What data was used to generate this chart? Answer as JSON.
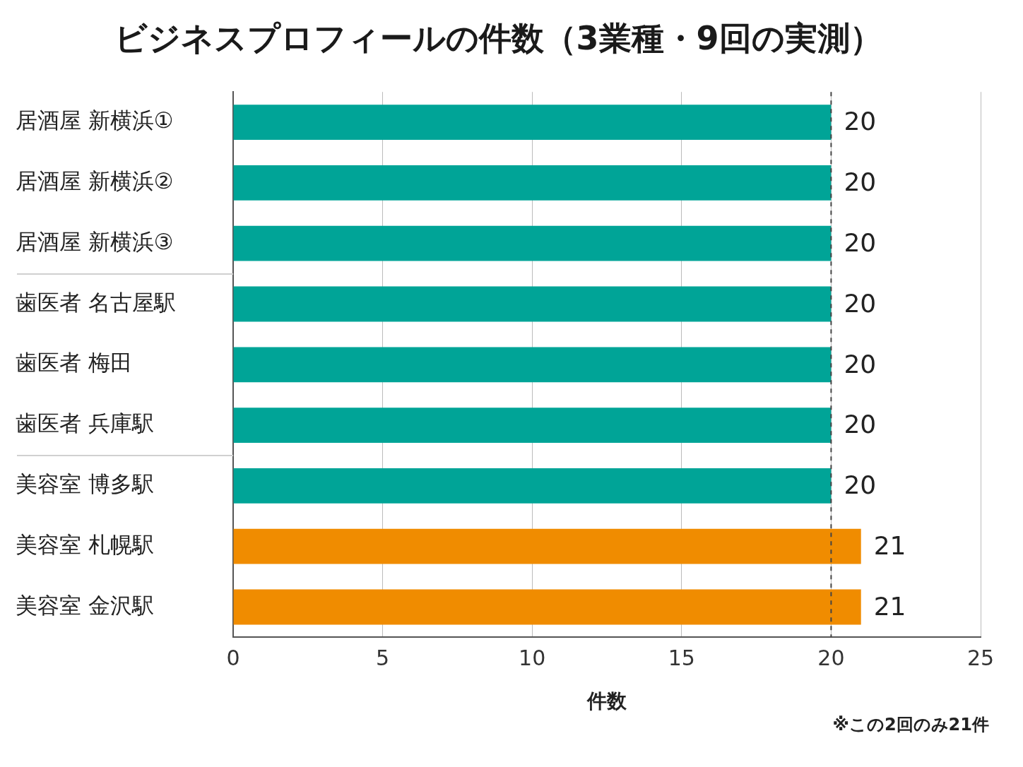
{
  "chart_data": {
    "type": "bar",
    "orientation": "horizontal",
    "title": "ビジネスプロフィールの件数（3業種・9回の実測）",
    "categories": [
      "居酒屋 新横浜①",
      "居酒屋 新横浜②",
      "居酒屋 新横浜③",
      "歯医者 名古屋駅",
      "歯医者 梅田",
      "歯医者 兵庫駅",
      "美容室 博多駅",
      "美容室 札幌駅",
      "美容室 金沢駅"
    ],
    "values": [
      20,
      20,
      20,
      20,
      20,
      20,
      20,
      21,
      21
    ],
    "colors": [
      "#00a497",
      "#00a497",
      "#00a497",
      "#00a497",
      "#00a497",
      "#00a497",
      "#00a497",
      "#f08c00",
      "#f08c00"
    ],
    "xlim": [
      0,
      25
    ],
    "xticks": [
      0,
      5,
      10,
      15,
      20,
      25
    ],
    "xlabel": "件数",
    "grid": "x",
    "data_labels": true,
    "ref_lines": [
      {
        "axis": "x",
        "value": 20,
        "color": "#444444",
        "line_style": "dashed"
      }
    ],
    "annotations": [
      "※この2回のみ21件"
    ]
  }
}
